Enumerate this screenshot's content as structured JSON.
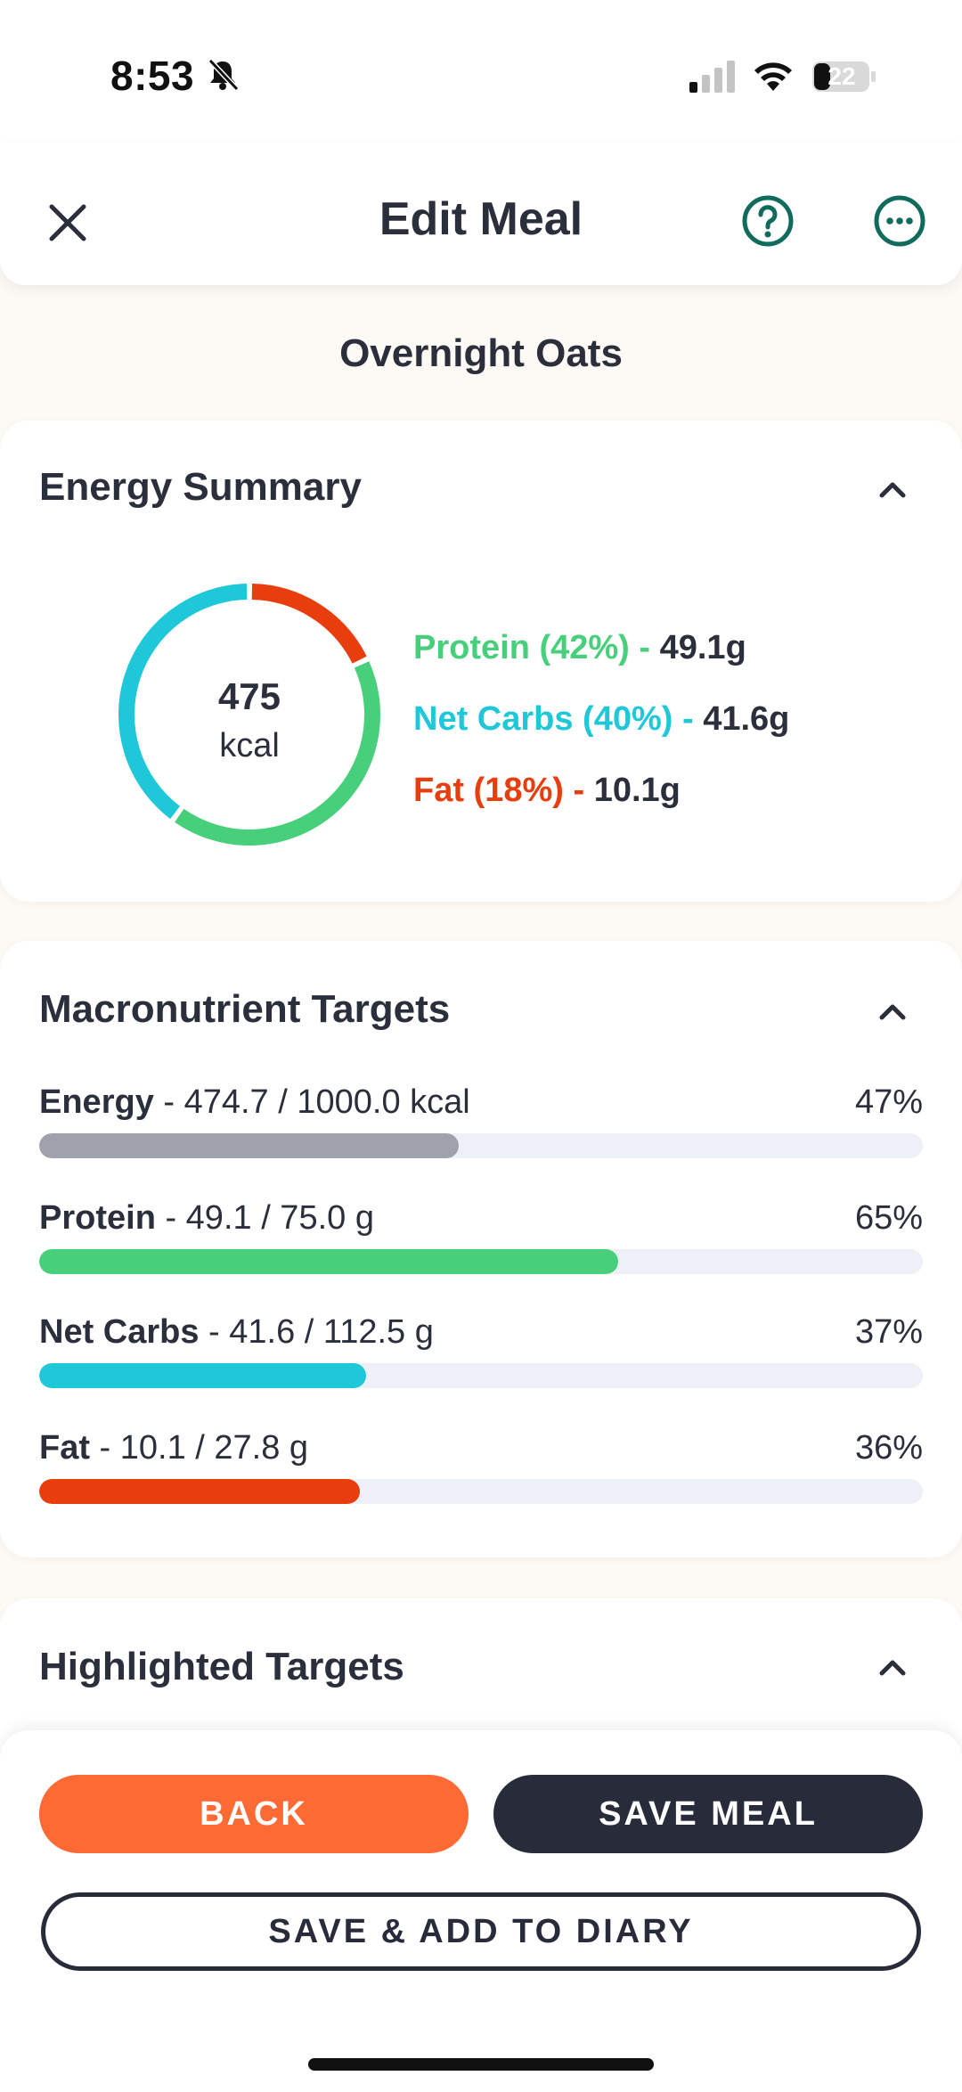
{
  "status_bar": {
    "time": "8:53",
    "battery": "22"
  },
  "header": {
    "title": "Edit Meal"
  },
  "meal": {
    "name": "Overnight Oats"
  },
  "energy_summary": {
    "title": "Energy Summary",
    "kcal_value": "475",
    "kcal_unit": "kcal",
    "protein_label": "Protein (42%) - ",
    "protein_value": "49.1g",
    "carbs_label": "Net Carbs (40%) - ",
    "carbs_value": "41.6g",
    "fat_label": "Fat (18%) - ",
    "fat_value": "10.1g",
    "shares": {
      "protein": 0.42,
      "carbs": 0.4,
      "fat": 0.18
    }
  },
  "macro_targets": {
    "title": "Macronutrient Targets",
    "rows": [
      {
        "name": "Energy",
        "detail": " - 474.7 / 1000.0 kcal",
        "pct": "47%",
        "fraction": 0.475,
        "color": "#9fa2ad"
      },
      {
        "name": "Protein",
        "detail": " - 49.1 / 75.0 g",
        "pct": "65%",
        "fraction": 0.655,
        "color": "#47cf7b"
      },
      {
        "name": "Net Carbs",
        "detail": " - 41.6 / 112.5 g",
        "pct": "37%",
        "fraction": 0.37,
        "color": "#1ec8d8"
      },
      {
        "name": "Fat",
        "detail": " - 10.1 / 27.8 g",
        "pct": "36%",
        "fraction": 0.363,
        "color": "#e83d0c"
      }
    ]
  },
  "highlighted_targets": {
    "title": "Highlighted Targets"
  },
  "buttons": {
    "back": "BACK",
    "save_meal": "SAVE MEAL",
    "save_add_diary": "SAVE & ADD TO DIARY"
  },
  "colors": {
    "protein": "#47cf7b",
    "carbs": "#1ec8d8",
    "fat": "#e83d0c",
    "accent": "#fd6a34",
    "dark": "#272b3a",
    "teal_icon": "#0f6b5c"
  }
}
